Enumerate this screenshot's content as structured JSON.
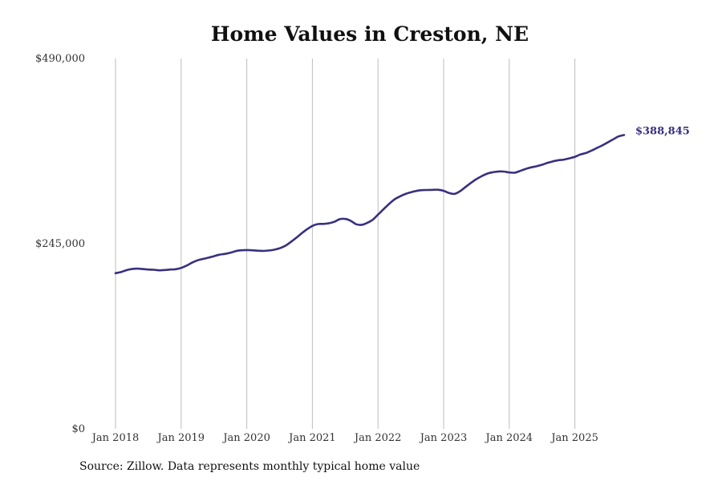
{
  "chart_data": {
    "type": "line",
    "title": "Home Values in Creston, NE",
    "xlabel": "",
    "ylabel": "",
    "ylim": [
      0,
      490000
    ],
    "y_ticks": [
      {
        "value": 0,
        "label": "$0"
      },
      {
        "value": 245000,
        "label": "$245,000"
      },
      {
        "value": 490000,
        "label": "$490,000"
      }
    ],
    "x_ticks": [
      {
        "value": 2018,
        "label": "Jan 2018"
      },
      {
        "value": 2019,
        "label": "Jan 2019"
      },
      {
        "value": 2020,
        "label": "Jan 2020"
      },
      {
        "value": 2021,
        "label": "Jan 2021"
      },
      {
        "value": 2022,
        "label": "Jan 2022"
      },
      {
        "value": 2023,
        "label": "Jan 2023"
      },
      {
        "value": 2024,
        "label": "Jan 2024"
      },
      {
        "value": 2025,
        "label": "Jan 2025"
      }
    ],
    "grid": "vertical",
    "series": [
      {
        "name": "Typical home value",
        "color": "#37307f",
        "x": [
          2018.0,
          2018.083,
          2018.167,
          2018.25,
          2018.333,
          2018.417,
          2018.5,
          2018.583,
          2018.667,
          2018.75,
          2018.833,
          2018.917,
          2019.0,
          2019.083,
          2019.167,
          2019.25,
          2019.333,
          2019.417,
          2019.5,
          2019.583,
          2019.667,
          2019.75,
          2019.833,
          2019.917,
          2020.0,
          2020.083,
          2020.167,
          2020.25,
          2020.333,
          2020.417,
          2020.5,
          2020.583,
          2020.667,
          2020.75,
          2020.833,
          2020.917,
          2021.0,
          2021.083,
          2021.167,
          2021.25,
          2021.333,
          2021.417,
          2021.5,
          2021.583,
          2021.667,
          2021.75,
          2021.833,
          2021.917,
          2022.0,
          2022.083,
          2022.167,
          2022.25,
          2022.333,
          2022.417,
          2022.5,
          2022.583,
          2022.667,
          2022.75,
          2022.833,
          2022.917,
          2023.0,
          2023.083,
          2023.167,
          2023.25,
          2023.333,
          2023.417,
          2023.5,
          2023.583,
          2023.667,
          2023.75,
          2023.833,
          2023.917,
          2024.0,
          2024.083,
          2024.167,
          2024.25,
          2024.333,
          2024.417,
          2024.5,
          2024.583,
          2024.667,
          2024.75,
          2024.833,
          2024.917,
          2025.0,
          2025.083,
          2025.167,
          2025.25,
          2025.333,
          2025.417,
          2025.5,
          2025.583,
          2025.667,
          2025.75
        ],
        "values": [
          206000,
          207500,
          210000,
          211500,
          212000,
          211500,
          210800,
          210500,
          209800,
          210200,
          210800,
          211300,
          213000,
          216000,
          220000,
          223000,
          224800,
          226500,
          228500,
          230500,
          231500,
          233000,
          235200,
          236300,
          236600,
          236300,
          235800,
          235500,
          236000,
          237000,
          239000,
          242000,
          247000,
          252500,
          258500,
          264000,
          268500,
          271000,
          271200,
          272000,
          274000,
          277500,
          277800,
          275300,
          270800,
          270000,
          272500,
          276500,
          283500,
          290500,
          297500,
          303500,
          307500,
          310800,
          313000,
          314800,
          315900,
          316100,
          316300,
          316400,
          315000,
          312000,
          311000,
          314500,
          320000,
          325500,
          330500,
          334500,
          337800,
          339500,
          340600,
          340500,
          339300,
          339000,
          341300,
          344000,
          346000,
          347500,
          349500,
          352000,
          354000,
          355500,
          356300,
          358000,
          360000,
          363000,
          365000,
          368000,
          371500,
          375000,
          379000,
          383000,
          387000,
          388845
        ]
      }
    ],
    "end_label": "$388,845"
  },
  "source_note": "Source: Zillow. Data represents monthly typical home value"
}
